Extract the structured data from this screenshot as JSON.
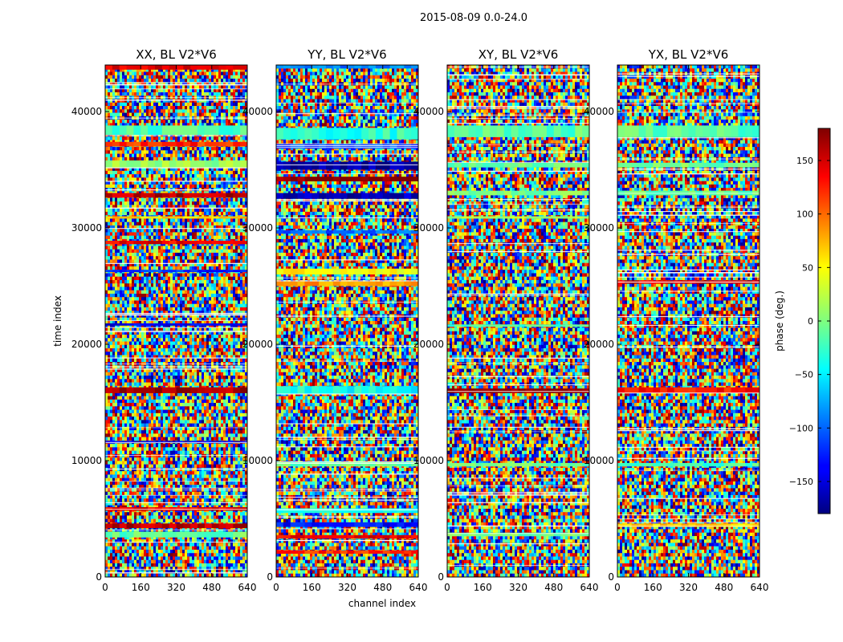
{
  "chart_data": {
    "type": "heatmap",
    "title": "2015-08-09 0.0-24.0",
    "xlabel": "channel index",
    "ylabel": "time index",
    "xlim": [
      0,
      640
    ],
    "ylim": [
      0,
      44000
    ],
    "x_ticks": [
      0,
      160,
      320,
      480,
      640
    ],
    "y_ticks": [
      0,
      10000,
      20000,
      30000,
      40000
    ],
    "colormap": "jet",
    "colorbar": {
      "label": "phase (deg.)",
      "range": [
        -180,
        180
      ],
      "ticks": [
        -150,
        -100,
        -50,
        0,
        50,
        100,
        150
      ],
      "tick_labels": [
        "−150",
        "−100",
        "−50",
        "0",
        "50",
        "100",
        "150"
      ]
    },
    "panels": [
      {
        "title": "XX, BL V2*V6",
        "bands": [
          {
            "start": 43600,
            "end": 44000,
            "phase": 150
          },
          {
            "start": 38000,
            "end": 38800,
            "phase": -20
          },
          {
            "start": 37000,
            "end": 37400,
            "phase": 120
          },
          {
            "start": 35200,
            "end": 35800,
            "phase": 10
          },
          {
            "start": 32600,
            "end": 33000,
            "phase": 160
          },
          {
            "start": 30800,
            "end": 31000,
            "phase": 60
          },
          {
            "start": 28600,
            "end": 28900,
            "phase": 140
          },
          {
            "start": 26200,
            "end": 26400,
            "phase": -120
          },
          {
            "start": 21600,
            "end": 21800,
            "phase": -140
          },
          {
            "start": 15800,
            "end": 16300,
            "phase": 165
          },
          {
            "start": 11500,
            "end": 11700,
            "phase": -150
          },
          {
            "start": 5700,
            "end": 6000,
            "phase": 140
          },
          {
            "start": 4200,
            "end": 4600,
            "phase": 160
          },
          {
            "start": 3400,
            "end": 3900,
            "phase": -10
          }
        ]
      },
      {
        "title": "YY, BL V2*V6",
        "bands": [
          {
            "start": 43700,
            "end": 44000,
            "phase": -90
          },
          {
            "start": 37600,
            "end": 38600,
            "phase": -30
          },
          {
            "start": 36800,
            "end": 37200,
            "phase": -110
          },
          {
            "start": 35000,
            "end": 35700,
            "phase": -170
          },
          {
            "start": 34000,
            "end": 34400,
            "phase": 175
          },
          {
            "start": 32500,
            "end": 33000,
            "phase": -160
          },
          {
            "start": 29500,
            "end": 29800,
            "phase": -100
          },
          {
            "start": 26000,
            "end": 26500,
            "phase": 45
          },
          {
            "start": 25000,
            "end": 25400,
            "phase": 80
          },
          {
            "start": 15700,
            "end": 16400,
            "phase": -40
          },
          {
            "start": 9500,
            "end": 9900,
            "phase": -10
          },
          {
            "start": 5500,
            "end": 5900,
            "phase": -40
          },
          {
            "start": 4300,
            "end": 4700,
            "phase": -130
          },
          {
            "start": 3300,
            "end": 3600,
            "phase": 140
          },
          {
            "start": 2000,
            "end": 2300,
            "phase": 120
          }
        ]
      },
      {
        "title": "XY, BL V2*V6",
        "bands": [
          {
            "start": 37800,
            "end": 38800,
            "phase": -15
          },
          {
            "start": 35200,
            "end": 35600,
            "phase": -10
          },
          {
            "start": 32800,
            "end": 33200,
            "phase": -5
          },
          {
            "start": 30800,
            "end": 31000,
            "phase": 20
          },
          {
            "start": 21500,
            "end": 21700,
            "phase": -20
          },
          {
            "start": 15800,
            "end": 16200,
            "phase": 175
          },
          {
            "start": 9500,
            "end": 9800,
            "phase": -10
          },
          {
            "start": 3500,
            "end": 3800,
            "phase": -5
          }
        ]
      },
      {
        "title": "YX, BL V2*V6",
        "bands": [
          {
            "start": 37800,
            "end": 38800,
            "phase": -15
          },
          {
            "start": 35200,
            "end": 35600,
            "phase": -5
          },
          {
            "start": 32800,
            "end": 33200,
            "phase": -10
          },
          {
            "start": 25200,
            "end": 25500,
            "phase": 150
          },
          {
            "start": 15800,
            "end": 16300,
            "phase": 130
          },
          {
            "start": 9500,
            "end": 9800,
            "phase": -20
          },
          {
            "start": 4300,
            "end": 4600,
            "phase": 60
          }
        ]
      }
    ]
  }
}
